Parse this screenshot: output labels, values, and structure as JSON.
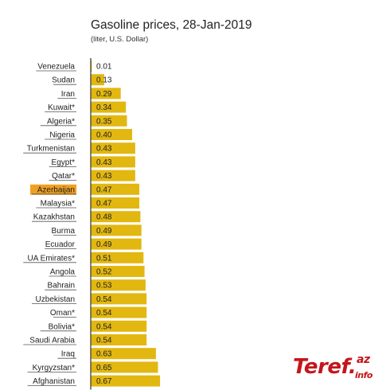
{
  "header": {
    "title": "Gasoline prices, 28-Jan-2019",
    "subtitle": "(liter, U.S. Dollar)"
  },
  "colors": {
    "bar": "#e2b710",
    "highlight_label_bg": "#f0a020",
    "text": "#222222",
    "axis": "#333333"
  },
  "watermark": {
    "main": "Teref.",
    "sup": "az",
    "sub": "info"
  },
  "chart_data": {
    "type": "bar",
    "orientation": "horizontal",
    "title": "Gasoline prices, 28-Jan-2019",
    "subtitle": "(liter, U.S. Dollar)",
    "xlabel": "",
    "ylabel": "",
    "xlim": [
      0,
      0.67
    ],
    "grid": false,
    "highlight": "Azerbaijan",
    "categories": [
      "Venezuela",
      "Sudan",
      "Iran",
      "Kuwait*",
      "Algeria*",
      "Nigeria",
      "Turkmenistan",
      "Egypt*",
      "Qatar*",
      "Azerbaijan",
      "Malaysia*",
      "Kazakhstan",
      "Burma",
      "Ecuador",
      "UA Emirates*",
      "Angola",
      "Bahrain",
      "Uzbekistan",
      "Oman*",
      "Bolivia*",
      "Saudi Arabia",
      "Iraq",
      "Kyrgyzstan*",
      "Afghanistan"
    ],
    "values": [
      0.01,
      0.13,
      0.29,
      0.34,
      0.35,
      0.4,
      0.43,
      0.43,
      0.43,
      0.47,
      0.47,
      0.48,
      0.49,
      0.49,
      0.51,
      0.52,
      0.53,
      0.54,
      0.54,
      0.54,
      0.54,
      0.63,
      0.65,
      0.67
    ],
    "value_labels": [
      "0.01",
      "0.13",
      "0.29",
      "0.34",
      "0.35",
      "0.40",
      "0.43",
      "0.43",
      "0.43",
      "0.47",
      "0.47",
      "0.48",
      "0.49",
      "0.49",
      "0.51",
      "0.52",
      "0.53",
      "0.54",
      "0.54",
      "0.54",
      "0.54",
      "0.63",
      "0.65",
      "0.67"
    ]
  }
}
